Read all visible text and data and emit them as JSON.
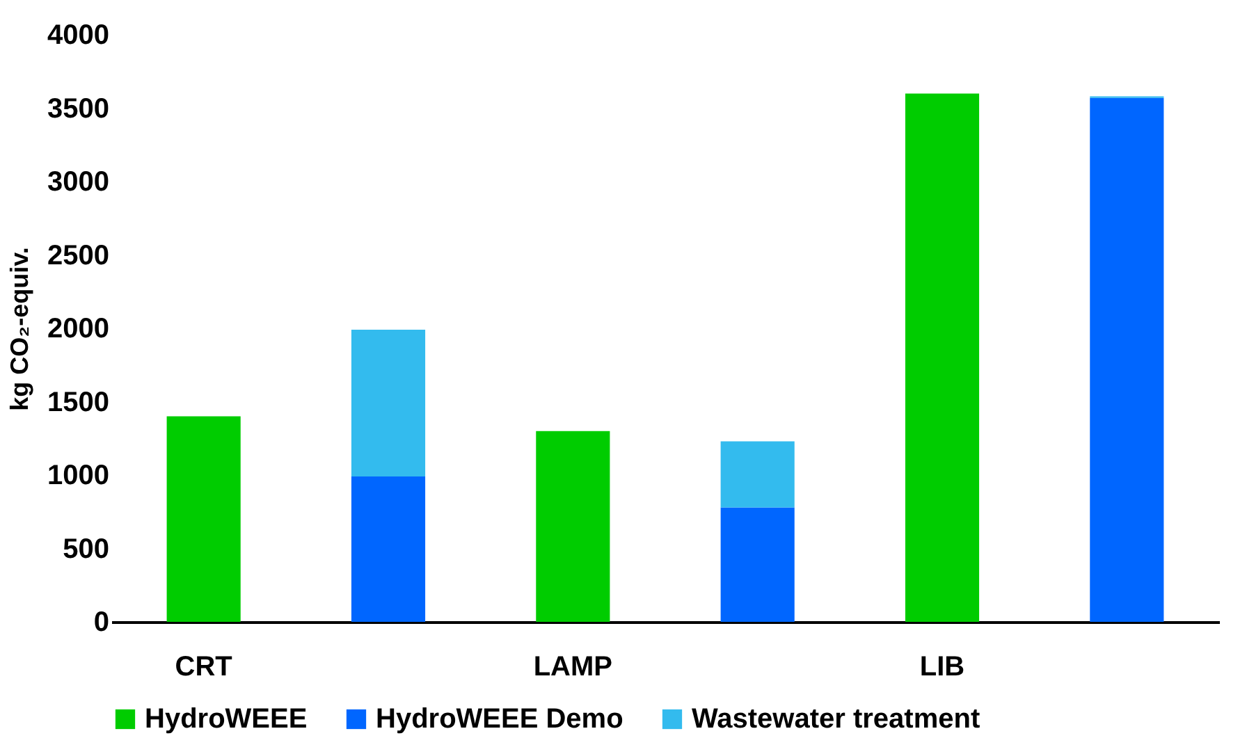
{
  "chart_data": {
    "type": "bar",
    "stacked": true,
    "ylabel": "kg CO₂-equiv.",
    "categories": [
      "CRT",
      null,
      "LAMP",
      null,
      "LIB",
      null
    ],
    "series": [
      {
        "name": "HydroWEEE",
        "color": "#00cc00",
        "values": [
          1400,
          null,
          1300,
          null,
          3600,
          null
        ]
      },
      {
        "name": "HydroWEEE Demo",
        "color": "#0066ff",
        "values": [
          null,
          990,
          null,
          780,
          null,
          3570
        ]
      },
      {
        "name": "Wastewater treatment",
        "color": "#33bbee",
        "values": [
          null,
          1000,
          null,
          450,
          null,
          10
        ]
      }
    ],
    "ylim": [
      0,
      4000
    ],
    "yticks": [
      0,
      500,
      1000,
      1500,
      2000,
      2500,
      3000,
      3500,
      4000
    ],
    "grid": false,
    "legend": "bottom"
  }
}
